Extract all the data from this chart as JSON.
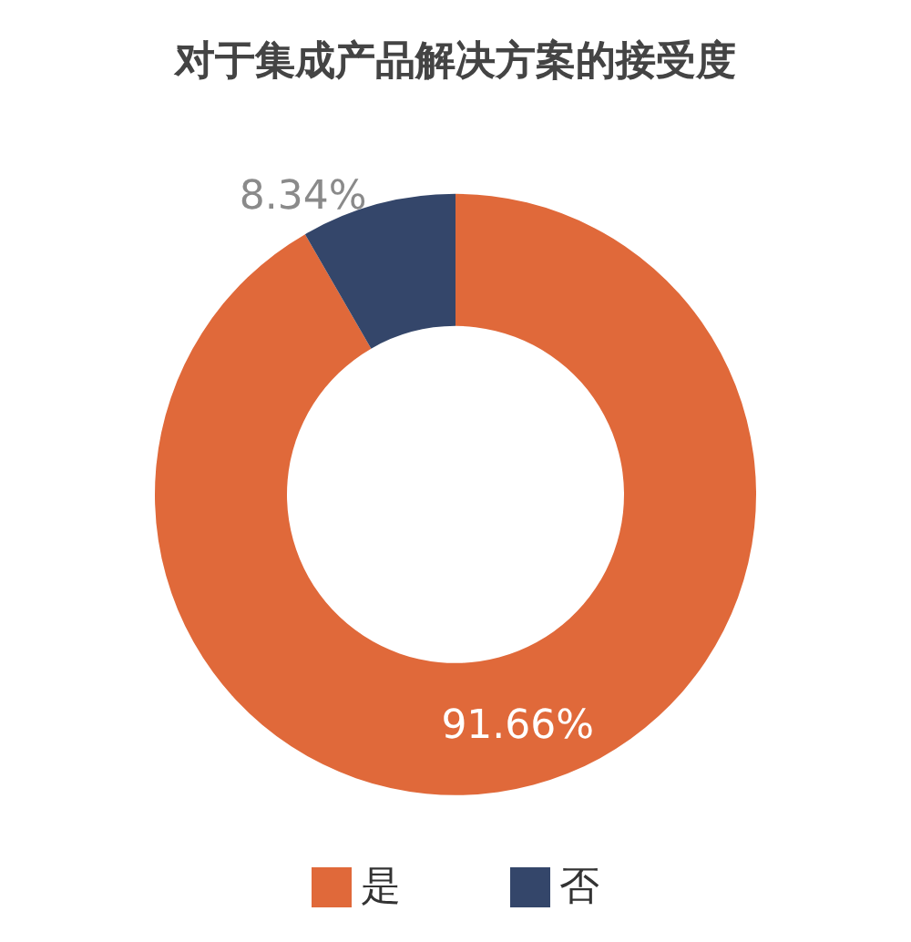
{
  "chart_data": {
    "type": "donut",
    "title": "对于集成产品解决方案的接受度",
    "categories": [
      "是",
      "否"
    ],
    "values": [
      91.66,
      8.34
    ],
    "value_labels": [
      "91.66%",
      "8.34%"
    ],
    "colors": [
      "#e0693a",
      "#34466a"
    ],
    "legend": "bottom"
  }
}
